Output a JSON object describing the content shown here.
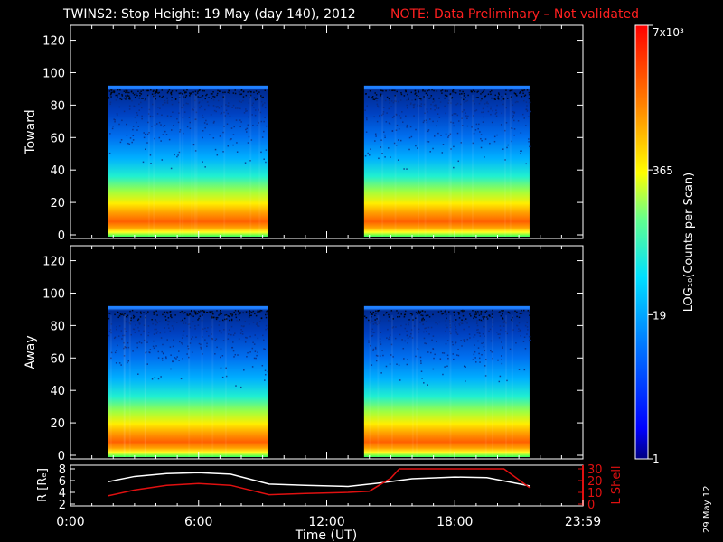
{
  "header": {
    "title": "TWINS2: Stop Height: 19 May (day 140), 2012",
    "note": "NOTE: Data Preliminary – Not validated",
    "note_color": "#ff2020"
  },
  "side_date": "29 May 12",
  "colorbar": {
    "label": "LOG₁₀(Counts per Scan)",
    "ticks": [
      {
        "label": "1",
        "value": 1
      },
      {
        "label": "19",
        "value": 19
      },
      {
        "label": "365",
        "value": 365
      },
      {
        "label": "7x10³",
        "value": 7000
      }
    ],
    "range": [
      1,
      7000
    ],
    "scale": "log",
    "colors": [
      "#000080",
      "#0000ff",
      "#0080ff",
      "#00ffff",
      "#80ff80",
      "#ffff00",
      "#ff8000",
      "#ff0000"
    ]
  },
  "chart_data": [
    {
      "type": "heatmap",
      "ylabel": "Toward",
      "x_range_hours": [
        0,
        24
      ],
      "ylim": [
        0,
        127
      ],
      "yticks": [
        "0",
        "20",
        "40",
        "60",
        "80",
        "100",
        "120"
      ],
      "data_blocks": [
        {
          "start": "01:45",
          "end": "09:15",
          "height_max": 92
        },
        {
          "start": "13:45",
          "end": "21:30",
          "height_max": 92
        }
      ]
    },
    {
      "type": "heatmap",
      "ylabel": "Away",
      "x_range_hours": [
        0,
        24
      ],
      "ylim": [
        0,
        127
      ],
      "yticks": [
        "0",
        "20",
        "40",
        "60",
        "80",
        "100",
        "120"
      ],
      "data_blocks": [
        {
          "start": "01:45",
          "end": "09:15",
          "height_max": 92
        },
        {
          "start": "13:45",
          "end": "21:30",
          "height_max": 92
        }
      ]
    },
    {
      "type": "line",
      "ylabel": "R [Rₑ]",
      "y2label": "L Shell",
      "ylim": [
        2,
        8
      ],
      "y2lim": [
        0,
        30
      ],
      "yticks": [
        "2",
        "4",
        "6",
        "8"
      ],
      "y2ticks": [
        "0",
        "10",
        "20",
        "30"
      ],
      "xlabel": "Time (UT)",
      "xticks": [
        "0:00",
        "6:00",
        "12:00",
        "18:00",
        "23:59"
      ],
      "series": [
        {
          "axis": "left",
          "color": "#ffffff",
          "x": [
            1.75,
            3.0,
            4.5,
            6.0,
            7.5,
            9.3,
            11.0,
            13.0,
            14.5,
            16.0,
            18.0,
            19.5,
            21.5
          ],
          "y": [
            5.8,
            6.7,
            7.2,
            7.35,
            7.1,
            5.4,
            5.2,
            5.0,
            5.6,
            6.3,
            6.6,
            6.5,
            5.1
          ]
        },
        {
          "axis": "right",
          "color": "#e01010",
          "x": [
            1.75,
            3.0,
            4.5,
            6.0,
            7.5,
            9.3,
            11.0,
            13.0,
            14.0,
            15.0,
            15.4,
            20.3,
            21.5
          ],
          "y": [
            7,
            12,
            16,
            17.5,
            16,
            8,
            9,
            10,
            11,
            22,
            30,
            30,
            14
          ]
        }
      ]
    }
  ]
}
